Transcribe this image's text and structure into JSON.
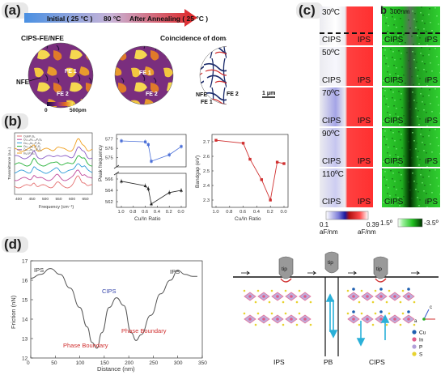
{
  "panel_a": {
    "letter": "(a)",
    "arrow_left": "Initial ( 25 °C )",
    "arrow_mid": "80 °C",
    "arrow_right": "After Annealing ( 25 °C )",
    "left_title": "CIPS-FE/NFE",
    "right_title": "Coincidence of domain walls",
    "lbl_nfe": "NFE",
    "lbl_fe1": "FE 1",
    "lbl_fe2": "FE 2",
    "lbl_fe1_b": "FE 1",
    "lbl_fe2_b": "FE 2",
    "lbl_fe1_r": "FE 1",
    "lbl_fe2_r": "FE 2",
    "lbl_nfe_r": "NFE",
    "colorbar_min": "0",
    "colorbar_max": "500pm",
    "scalebar": "1 μm"
  },
  "panel_b": {
    "letter": "(b)",
    "spectra": {
      "xlabel": "Frequency (cm⁻¹)",
      "ylabel": "Transmittance (a.u.)",
      "xticks": [
        "400",
        "450",
        "500",
        "550",
        "600",
        "650"
      ],
      "legend": [
        "CuInP₂S₆",
        "Cu₀.₈In₁.₀₄P₂S₆",
        "Cu₀.₆In₁.₁P₂S₆",
        "Cu₀.₄In₁.₂P₂S₆",
        "Cu₀.₂In₁.₂₆P₂S₆",
        "In₄/₃P₂S₆"
      ],
      "colors": [
        "#e57373",
        "#c04a9c",
        "#2e9cd8",
        "#29b33b",
        "#8a5cc6",
        "#f0a020"
      ]
    },
    "peak": {
      "ylabel": "Peak frequency",
      "xlabel": "Cu/In Ratio",
      "yticks_top": [
        "577",
        "576",
        "575"
      ],
      "yticks_bottom": [
        "566",
        "564",
        "562"
      ],
      "xticks": [
        "1.0",
        "0.8",
        "0.6",
        "0.4",
        "0.2",
        "0.0"
      ]
    },
    "bandgap": {
      "ylabel": "Bandgap (eV)",
      "xlabel": "Cu/In Ratio",
      "yticks": [
        "2.7",
        "2.6",
        "2.5",
        "2.4",
        "2.3"
      ],
      "xticks": [
        "1.0",
        "0.8",
        "0.6",
        "0.4",
        "0.2",
        "0.0"
      ]
    }
  },
  "chart_data": [
    {
      "type": "scatter",
      "name": "peak-frequency-upper",
      "xlabel": "Cu/In Ratio",
      "ylabel": "Peak frequency",
      "x": [
        1.0,
        0.6,
        0.55,
        0.5,
        0.2,
        0.0
      ],
      "y": [
        576.8,
        576.7,
        576.4,
        574.6,
        575.3,
        576.2
      ],
      "ylim": [
        574,
        577.5
      ],
      "color": "#4a6fd8"
    },
    {
      "type": "scatter",
      "name": "peak-frequency-lower",
      "xlabel": "Cu/In Ratio",
      "ylabel": "Peak frequency",
      "x": [
        1.0,
        0.6,
        0.55,
        0.5,
        0.2,
        0.0
      ],
      "y": [
        565.6,
        564.8,
        564.3,
        561.6,
        563.6,
        564.0
      ],
      "ylim": [
        561,
        567
      ],
      "color": "#222222"
    },
    {
      "type": "line",
      "name": "bandgap",
      "xlabel": "Cu/In Ratio",
      "ylabel": "Bandgap (eV)",
      "x": [
        1.0,
        0.6,
        0.5,
        0.33,
        0.2,
        0.1,
        0.0
      ],
      "y": [
        2.71,
        2.69,
        2.58,
        2.44,
        2.3,
        2.56,
        2.55
      ],
      "ylim": [
        2.25,
        2.75
      ],
      "color": "#d03030"
    },
    {
      "type": "line",
      "name": "friction-profile",
      "xlabel": "Distance (nm)",
      "ylabel": "Friction (nN)",
      "xticks": [
        "0",
        "50",
        "100",
        "150",
        "200",
        "250",
        "300",
        "350"
      ],
      "yticks": [
        "12",
        "13",
        "14",
        "15",
        "16",
        "17"
      ],
      "x": [
        0,
        20,
        40,
        60,
        80,
        100,
        115,
        125,
        135,
        145,
        160,
        175,
        190,
        205,
        215,
        225,
        245,
        265,
        285,
        300,
        315,
        330,
        340
      ],
      "y": [
        16.1,
        16.3,
        16.6,
        16.3,
        15.6,
        14.6,
        13.6,
        12.8,
        12.5,
        13.3,
        14.6,
        15.1,
        14.7,
        13.3,
        12.9,
        13.2,
        14.2,
        15.3,
        16.0,
        16.5,
        16.3,
        16.2,
        16.2
      ],
      "xlim": [
        0,
        350
      ],
      "ylim": [
        12,
        17
      ],
      "color": "#555555"
    }
  ],
  "panel_c": {
    "letter": "(c)",
    "temps": [
      "30ºC",
      "50ºC",
      "70ºC",
      "90ºC",
      "110ºC"
    ],
    "left_lbl": "CIPS",
    "right_lbl": "IPS",
    "cb_min": "0.1",
    "cb_max": "0.39",
    "cb_unit": "aF/nm"
  },
  "panel_bb": {
    "letter": "b",
    "scale": "300nm",
    "left_lbl": "CIPS",
    "right_lbl": "IPS",
    "cb_min": "1.5º",
    "cb_max": "-3.5º"
  },
  "panel_d": {
    "letter": "(d)",
    "ann_ips_left": "IPS",
    "ann_cips": "CIPS",
    "ann_ips_right": "IPS",
    "ann_pb1": "Phase Boundary",
    "ann_pb2": "Phase Boundary",
    "tip": "tip",
    "bottom_ips": "IPS",
    "bottom_pb": "PB",
    "bottom_cips": "CIPS",
    "legend": [
      "Cu",
      "In",
      "P",
      "S"
    ],
    "legend_colors": [
      "#1e5fb0",
      "#e05c8a",
      "#b2a0d8",
      "#e8d330"
    ],
    "axis_c": "c",
    "axis_a": "a"
  }
}
